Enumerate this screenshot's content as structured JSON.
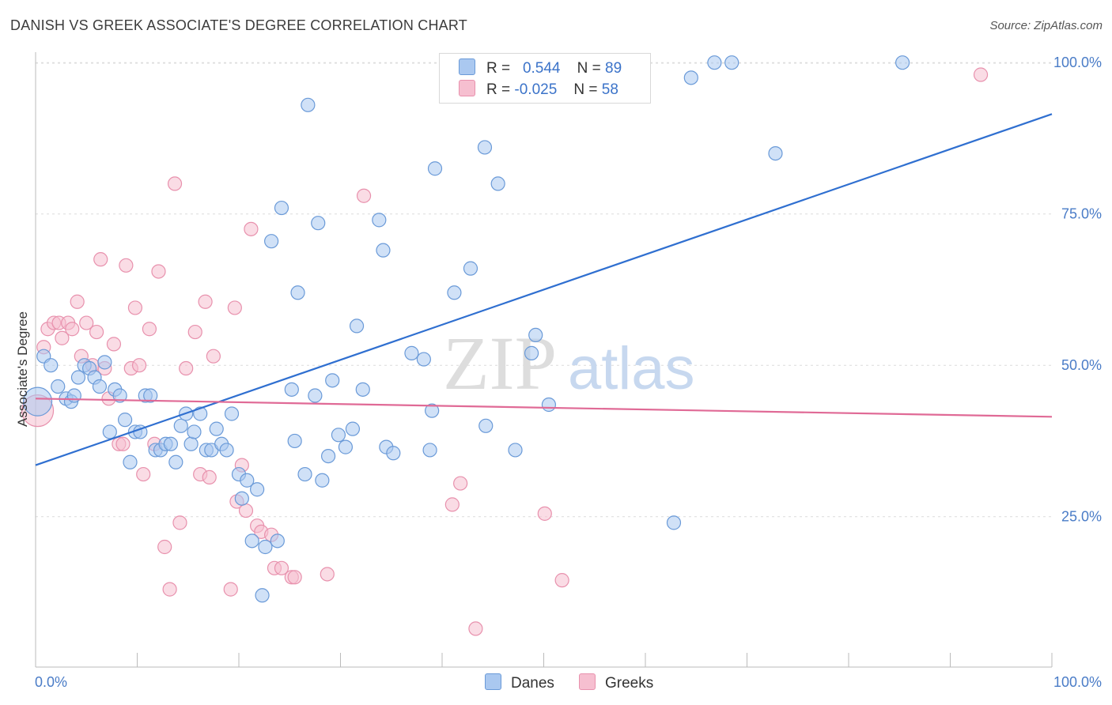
{
  "title": "DANISH VS GREEK ASSOCIATE'S DEGREE CORRELATION CHART",
  "source": "Source: ZipAtlas.com",
  "watermark": "ZIPatlas",
  "legend": {
    "danes": {
      "r_label": "R =",
      "r_value": "0.544",
      "n_label": "N =",
      "n_value": "89"
    },
    "greeks": {
      "r_label": "R =",
      "r_value": "-0.025",
      "n_label": "N =",
      "n_value": "58"
    }
  },
  "bottom_legend": {
    "danes": "Danes",
    "greeks": "Greeks"
  },
  "colors": {
    "danes_fill": "#aac8f0",
    "danes_stroke": "#6a9ad8",
    "danes_line": "#2f6fd0",
    "greeks_fill": "#f6bfd0",
    "greeks_stroke": "#e891ad",
    "greeks_line": "#e06a96",
    "tick_text": "#4a7cc7",
    "grid": "#dcdcdc"
  },
  "chart_data": {
    "type": "scatter",
    "title": "DANISH VS GREEK ASSOCIATE'S DEGREE CORRELATION CHART",
    "xlabel": "",
    "ylabel": "Associate's Degree",
    "xlim": [
      0,
      100
    ],
    "ylim": [
      0,
      102
    ],
    "x_tick_labels": [
      "0.0%",
      "100.0%"
    ],
    "y_tick_labels": [
      "25.0%",
      "50.0%",
      "75.0%",
      "100.0%"
    ],
    "y_ticks": [
      25,
      50,
      75,
      100
    ],
    "grid": true,
    "legend_position": "top-center",
    "series": [
      {
        "name": "Danes",
        "r": 0.544,
        "n": 89,
        "trend": [
          [
            0,
            33.5
          ],
          [
            100,
            91.5
          ]
        ],
        "points": [
          [
            0.2,
            44
          ],
          [
            0.8,
            51.5
          ],
          [
            1.5,
            50
          ],
          [
            2.2,
            46.5
          ],
          [
            3,
            44.5
          ],
          [
            3.5,
            44
          ],
          [
            3.8,
            45
          ],
          [
            4.2,
            48
          ],
          [
            4.8,
            50
          ],
          [
            5.3,
            49.5
          ],
          [
            5.8,
            48
          ],
          [
            6.3,
            46.5
          ],
          [
            6.8,
            50.5
          ],
          [
            7.3,
            39
          ],
          [
            7.8,
            46
          ],
          [
            8.3,
            45
          ],
          [
            8.8,
            41
          ],
          [
            9.3,
            34
          ],
          [
            9.8,
            39
          ],
          [
            10.3,
            39
          ],
          [
            10.8,
            45
          ],
          [
            11.3,
            45
          ],
          [
            11.8,
            36
          ],
          [
            12.3,
            36
          ],
          [
            12.8,
            37
          ],
          [
            13.3,
            37
          ],
          [
            13.8,
            34
          ],
          [
            14.3,
            40
          ],
          [
            14.8,
            42
          ],
          [
            15.3,
            37
          ],
          [
            15.6,
            39
          ],
          [
            16.2,
            42
          ],
          [
            16.8,
            36
          ],
          [
            17.3,
            36
          ],
          [
            17.8,
            39.5
          ],
          [
            18.3,
            37
          ],
          [
            18.8,
            36
          ],
          [
            19.3,
            42
          ],
          [
            20,
            32
          ],
          [
            20.3,
            28
          ],
          [
            20.8,
            31
          ],
          [
            21.3,
            21
          ],
          [
            21.8,
            29.5
          ],
          [
            22.3,
            12
          ],
          [
            22.6,
            20
          ],
          [
            23.2,
            70.5
          ],
          [
            23.8,
            21
          ],
          [
            24.2,
            76
          ],
          [
            25.2,
            46
          ],
          [
            25.5,
            37.5
          ],
          [
            25.8,
            62
          ],
          [
            26.5,
            32
          ],
          [
            26.8,
            93
          ],
          [
            27.5,
            45
          ],
          [
            27.8,
            73.5
          ],
          [
            28.2,
            31
          ],
          [
            28.8,
            35
          ],
          [
            29.2,
            47.5
          ],
          [
            29.8,
            38.5
          ],
          [
            30.5,
            36.5
          ],
          [
            31.2,
            39.5
          ],
          [
            31.6,
            56.5
          ],
          [
            32.2,
            46
          ],
          [
            33.8,
            74
          ],
          [
            34.2,
            69
          ],
          [
            34.5,
            36.5
          ],
          [
            35.2,
            35.5
          ],
          [
            37,
            52
          ],
          [
            38.2,
            51
          ],
          [
            38.8,
            36
          ],
          [
            39,
            42.5
          ],
          [
            39.3,
            82.5
          ],
          [
            41.2,
            62
          ],
          [
            42.8,
            66
          ],
          [
            44.2,
            86
          ],
          [
            44.3,
            40
          ],
          [
            45.5,
            80
          ],
          [
            47.2,
            36
          ],
          [
            48.8,
            52
          ],
          [
            49.2,
            55
          ],
          [
            50.5,
            43.5
          ],
          [
            58.5,
            100
          ],
          [
            62.8,
            24
          ],
          [
            64.5,
            97.5
          ],
          [
            66.8,
            100
          ],
          [
            68.5,
            100
          ],
          [
            72.8,
            85
          ],
          [
            85.3,
            100
          ]
        ]
      },
      {
        "name": "Greeks",
        "r": -0.025,
        "n": 58,
        "trend": [
          [
            0,
            44.5
          ],
          [
            100,
            41.5
          ]
        ],
        "points": [
          [
            0.2,
            42.5
          ],
          [
            0.8,
            53
          ],
          [
            1.2,
            56
          ],
          [
            1.8,
            57
          ],
          [
            2.3,
            57
          ],
          [
            2.6,
            54.5
          ],
          [
            3.2,
            57
          ],
          [
            3.6,
            56
          ],
          [
            4.1,
            60.5
          ],
          [
            4.5,
            51.5
          ],
          [
            5,
            57
          ],
          [
            5.6,
            50
          ],
          [
            6,
            55.5
          ],
          [
            6.4,
            67.5
          ],
          [
            6.8,
            49.5
          ],
          [
            7.2,
            44.5
          ],
          [
            7.7,
            53.5
          ],
          [
            8.2,
            37
          ],
          [
            8.6,
            37
          ],
          [
            8.9,
            66.5
          ],
          [
            9.4,
            49.5
          ],
          [
            9.8,
            59.5
          ],
          [
            10.2,
            50
          ],
          [
            10.6,
            32
          ],
          [
            11.2,
            56
          ],
          [
            11.7,
            37
          ],
          [
            12.1,
            65.5
          ],
          [
            12.7,
            20
          ],
          [
            13.2,
            13
          ],
          [
            13.7,
            80
          ],
          [
            14.2,
            24
          ],
          [
            14.8,
            49.5
          ],
          [
            15.7,
            55.5
          ],
          [
            16.2,
            32
          ],
          [
            16.7,
            60.5
          ],
          [
            17.1,
            31.5
          ],
          [
            17.5,
            51.5
          ],
          [
            19.2,
            13
          ],
          [
            19.8,
            27.5
          ],
          [
            19.6,
            59.5
          ],
          [
            20.3,
            33.5
          ],
          [
            20.7,
            26
          ],
          [
            21.2,
            72.5
          ],
          [
            21.8,
            23.5
          ],
          [
            22.2,
            22.5
          ],
          [
            23.2,
            22
          ],
          [
            23.5,
            16.5
          ],
          [
            24.2,
            16.5
          ],
          [
            25.2,
            15
          ],
          [
            25.5,
            15
          ],
          [
            28.7,
            15.5
          ],
          [
            32.3,
            78
          ],
          [
            41,
            27
          ],
          [
            41.8,
            30.5
          ],
          [
            43.3,
            6.5
          ],
          [
            50.1,
            25.5
          ],
          [
            51.8,
            14.5
          ],
          [
            93,
            98
          ]
        ]
      }
    ]
  }
}
